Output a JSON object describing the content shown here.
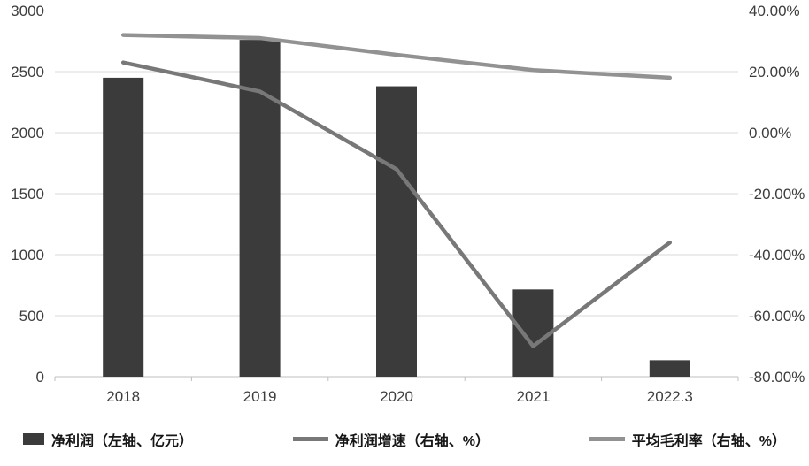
{
  "chart_data": {
    "type": "combo",
    "title": "",
    "categories": [
      "2018",
      "2019",
      "2020",
      "2021",
      "2022.3"
    ],
    "bar_series": {
      "name": "净利润（左轴、亿元）",
      "axis": "left",
      "color": "#3b3b3b",
      "values": [
        2450,
        2760,
        2380,
        715,
        135
      ]
    },
    "line_series": [
      {
        "name": "净利润增速（右轴、%）",
        "axis": "right",
        "color": "#787878",
        "values": [
          23,
          13.5,
          -12,
          -70,
          -36
        ]
      },
      {
        "name": "平均毛利率（右轴、%）",
        "axis": "right",
        "color": "#929292",
        "values": [
          32,
          31,
          25.5,
          20.5,
          18
        ]
      }
    ],
    "left_axis": {
      "min": 0,
      "max": 3000,
      "step": 500,
      "ticks": [
        "0",
        "500",
        "1000",
        "1500",
        "2000",
        "2500",
        "3000"
      ]
    },
    "right_axis": {
      "min": -80,
      "max": 40,
      "step": 20,
      "ticks": [
        "-80.00%",
        "-60.00%",
        "-40.00%",
        "-20.00%",
        "0.00%",
        "20.00%",
        "40.00%"
      ]
    },
    "grid": true,
    "legend_position": "bottom"
  },
  "colors": {
    "background": "#ffffff",
    "grid": "#d9d9d9",
    "axis_line": "#bfbfbf",
    "axis_text": "#3d3d3d"
  }
}
